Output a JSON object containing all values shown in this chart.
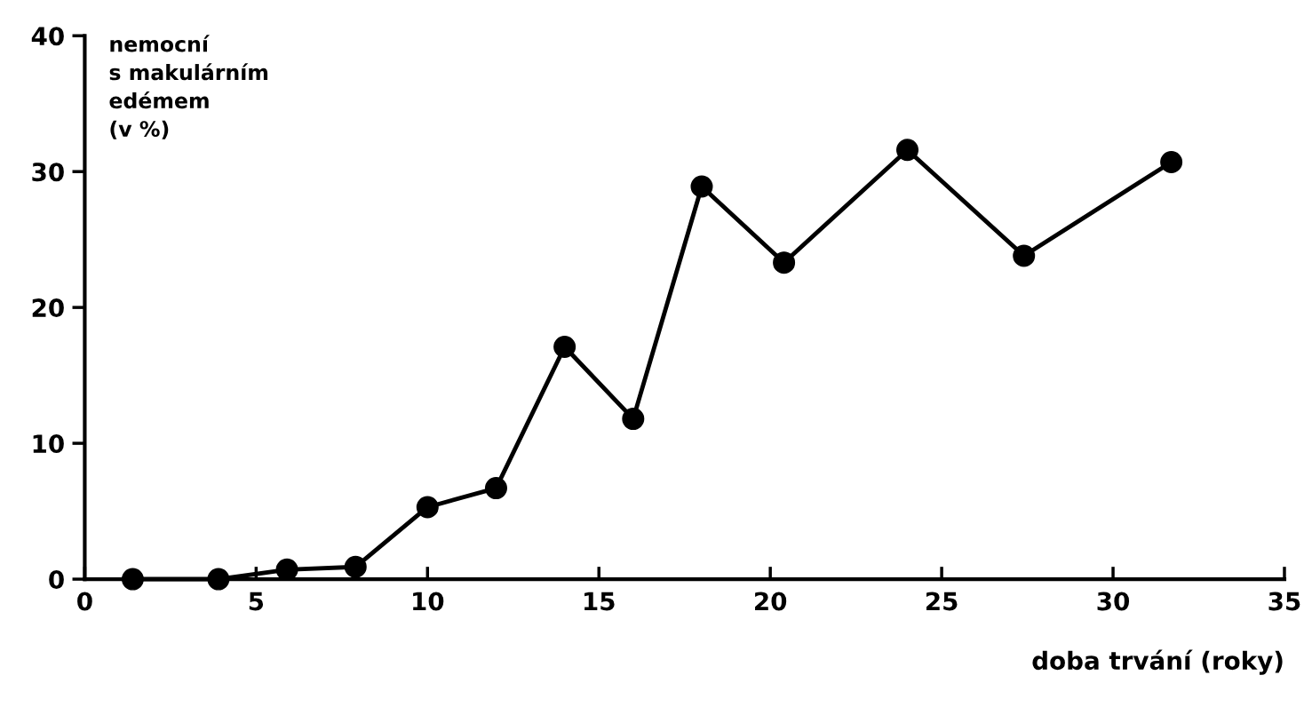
{
  "chart_data": {
    "type": "line",
    "ylabel": "nemocní\ns makulárním\nedémem\n(v %)",
    "xlabel": "doba trvání (roky)",
    "x": [
      1.4,
      3.9,
      5.9,
      7.9,
      10.0,
      12.0,
      14.0,
      16.0,
      18.0,
      20.4,
      24.0,
      27.4,
      31.7
    ],
    "series": [
      {
        "color": "#000000",
        "values": [
          0,
          0,
          0.7,
          0.9,
          5.3,
          6.7,
          17.1,
          11.8,
          28.9,
          23.3,
          31.6,
          23.8,
          30.7
        ]
      }
    ],
    "xlim": [
      0,
      35
    ],
    "xticks": [
      0,
      5,
      10,
      15,
      20,
      25,
      30,
      35
    ],
    "ylim": [
      0,
      40
    ],
    "yticks": [
      0,
      10,
      20,
      30,
      40
    ],
    "marker": "circle",
    "line_style": "solid",
    "grid": false,
    "legend": false
  }
}
